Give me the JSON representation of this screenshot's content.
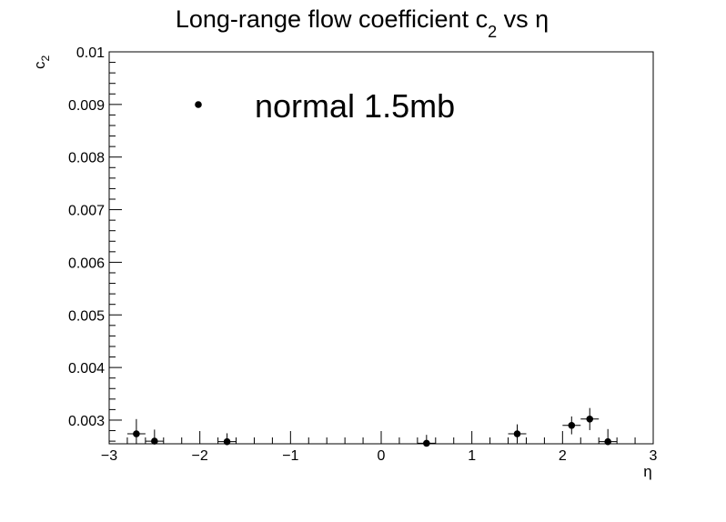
{
  "chart_data": {
    "type": "scatter",
    "title": {
      "main": "Long-range flow coefficient c",
      "subscript": "2",
      "suffix": " vs η"
    },
    "xlabel": "η",
    "ylabel": {
      "main": "c",
      "subscript": "2"
    },
    "xlim": [
      -3,
      3
    ],
    "ylim": [
      0.00255,
      0.01
    ],
    "x_ticks": [
      -3,
      -2,
      -1,
      0,
      1,
      2,
      3
    ],
    "x_tick_labels": [
      "−3",
      "−2",
      "−1",
      "0",
      "1",
      "2",
      "3"
    ],
    "y_ticks": [
      0.003,
      0.004,
      0.005,
      0.006,
      0.007,
      0.008,
      0.009,
      0.01
    ],
    "y_tick_labels": [
      "0.003",
      "0.004",
      "0.005",
      "0.006",
      "0.007",
      "0.008",
      "0.009",
      "0.01"
    ],
    "legend": {
      "label": "normal 1.5mb",
      "position": "top-left"
    },
    "marker_color": "#000000",
    "series": [
      {
        "name": "normal 1.5mb",
        "points": [
          {
            "x": -2.7,
            "y": 0.00274,
            "xerr": 0.1,
            "yerr": 0.00028
          },
          {
            "x": -2.5,
            "y": 0.0026,
            "xerr": 0.1,
            "yerr": 0.00022
          },
          {
            "x": -1.7,
            "y": 0.00259,
            "xerr": 0.1,
            "yerr": 0.00016
          },
          {
            "x": 0.5,
            "y": 0.00256,
            "xerr": 0.1,
            "yerr": 0.00016
          },
          {
            "x": 1.5,
            "y": 0.00274,
            "xerr": 0.1,
            "yerr": 0.00018
          },
          {
            "x": 2.1,
            "y": 0.0029,
            "xerr": 0.1,
            "yerr": 0.00017
          },
          {
            "x": 2.3,
            "y": 0.00302,
            "xerr": 0.1,
            "yerr": 0.00021
          },
          {
            "x": 2.5,
            "y": 0.00259,
            "xerr": 0.1,
            "yerr": 0.00024
          }
        ]
      }
    ]
  }
}
